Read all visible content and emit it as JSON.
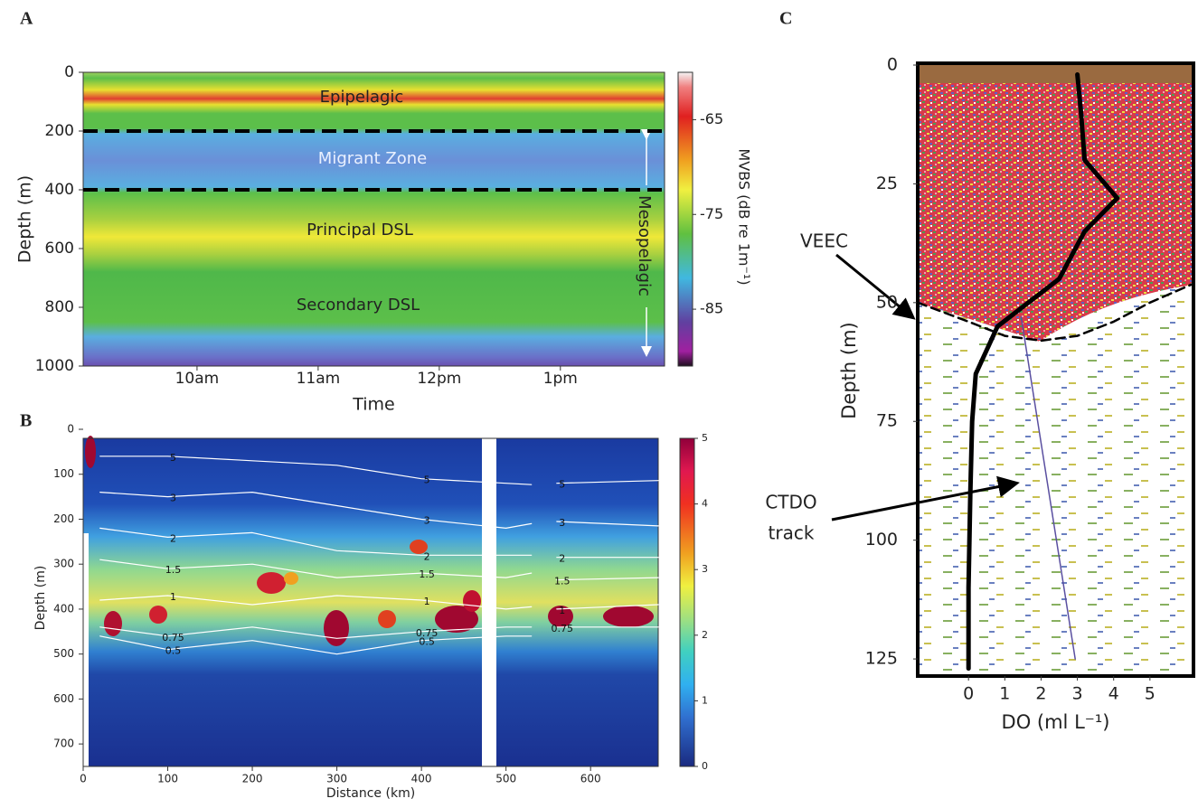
{
  "chart_data": [
    {
      "type": "heatmap",
      "panel": "A",
      "xlabel": "Time",
      "ylabel": "Depth (m)",
      "xlim": [
        9.06,
        13.86
      ],
      "xticks": [
        {
          "value": 10,
          "label": "10am"
        },
        {
          "value": 11,
          "label": "11am"
        },
        {
          "value": 12,
          "label": "12pm"
        },
        {
          "value": 13,
          "label": "1pm"
        }
      ],
      "ylim": [
        0,
        1000
      ],
      "y_inverted": true,
      "yticks": [
        0,
        200,
        400,
        600,
        800,
        1000
      ],
      "boundaries": [
        200,
        400
      ],
      "annotations": [
        "Epipelagic",
        "Migrant Zone",
        "Principal DSL",
        "Secondary DSL",
        "Mesopelagic"
      ],
      "colorbar": {
        "label": "MVBS (dB re 1m⁻¹)",
        "lim": [
          -60,
          -91
        ],
        "ticks": [
          -65,
          -75,
          -85
        ]
      }
    },
    {
      "type": "heatmap",
      "panel": "B",
      "xlabel": "Distance (km)",
      "ylabel": "Depth (m)",
      "xlim": [
        0,
        680
      ],
      "xticks": [
        0,
        100,
        200,
        300,
        400,
        500,
        600
      ],
      "ylim": [
        0,
        750
      ],
      "y_inverted": true,
      "yticks": [
        0,
        100,
        200,
        300,
        400,
        500,
        600,
        700
      ],
      "x": [
        20,
        100,
        200,
        300,
        400,
        500,
        530,
        545,
        560,
        680
      ],
      "series": [
        {
          "name": "5",
          "color": "#ffffff",
          "values": [
            60,
            60,
            70,
            80,
            110,
            120,
            123,
            null,
            120,
            114
          ]
        },
        {
          "name": "3",
          "color": "#ffffff",
          "values": [
            140,
            150,
            140,
            170,
            200,
            220,
            210,
            null,
            205,
            215
          ]
        },
        {
          "name": "2",
          "color": "#ffffff",
          "values": [
            220,
            240,
            230,
            270,
            280,
            280,
            280,
            null,
            285,
            285
          ]
        },
        {
          "name": "1.5",
          "color": "#ffffff",
          "values": [
            290,
            310,
            300,
            330,
            320,
            330,
            320,
            null,
            335,
            330
          ]
        },
        {
          "name": "1",
          "color": "#ffffff",
          "values": [
            380,
            370,
            390,
            370,
            380,
            400,
            395,
            null,
            400,
            390
          ]
        },
        {
          "name": "0.75",
          "color": "#ffffff",
          "values": [
            440,
            460,
            440,
            465,
            450,
            440,
            440,
            null,
            440,
            440
          ]
        },
        {
          "name": "0.5",
          "color": "#ffffff",
          "values": [
            460,
            490,
            470,
            500,
            470,
            460,
            460,
            null,
            null,
            null
          ]
        }
      ],
      "colorbar": {
        "lim": [
          5,
          0
        ],
        "ticks": [
          0,
          1,
          2,
          3,
          4,
          5
        ]
      }
    },
    {
      "type": "line",
      "panel": "C",
      "xlabel": "DO (ml L⁻¹)",
      "ylabel": "Depth (m)",
      "xlim": [
        -1.4,
        6.2
      ],
      "xticks": [
        0,
        1,
        2,
        3,
        4,
        5
      ],
      "ylim": [
        0,
        128.6
      ],
      "y_inverted": true,
      "yticks": [
        0,
        25,
        50,
        75,
        100,
        125
      ],
      "series": [
        {
          "color": "#000000",
          "width": 5,
          "x": [
            3.0,
            3.1,
            3.2,
            4.1,
            3.2,
            2.5,
            0.8,
            0.2,
            0.1,
            0.05,
            0.0,
            0.0
          ],
          "values": [
            2,
            10,
            20,
            28,
            35,
            45,
            55,
            65,
            75,
            90,
            110,
            127
          ]
        },
        {
          "color": "#000000",
          "width": 2.5,
          "dashed": true,
          "x": [
            -1.4,
            0,
            1,
            2,
            3,
            4,
            5,
            6.2
          ],
          "values": [
            50,
            54,
            57,
            58,
            57,
            54,
            50,
            46
          ]
        },
        {
          "color": "#5a4fa0",
          "width": 1.5,
          "x": [
            1.45,
            2.94
          ],
          "values": [
            53,
            125
          ]
        }
      ],
      "annotations": [
        "VEEC",
        "CTDO",
        "track"
      ]
    }
  ]
}
